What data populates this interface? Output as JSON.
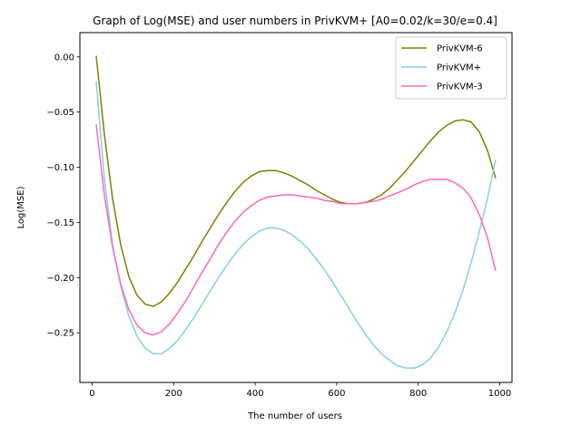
{
  "chart_data": {
    "type": "line",
    "title": "Graph of Log(MSE) and user numbers in PrivKVM+ [A0=0.02/k=30/e=0.4]",
    "xlabel": "The number of users",
    "ylabel": "Log(MSE)",
    "xlim": [
      -30,
      1030
    ],
    "ylim": [
      -0.295,
      0.022
    ],
    "xticks": [
      0,
      200,
      400,
      600,
      800,
      1000
    ],
    "yticks": [
      0.0,
      -0.05,
      -0.1,
      -0.15,
      -0.2,
      -0.25
    ],
    "xtick_labels": [
      "0",
      "200",
      "400",
      "600",
      "800",
      "1000"
    ],
    "ytick_labels": [
      "0.00",
      "−0.05",
      "−0.10",
      "−0.15",
      "−0.20",
      "−0.25"
    ],
    "grid": false,
    "legend_position": "top-right",
    "series": [
      {
        "name": "PrivKVM-6",
        "color": "#808000",
        "x": [
          10,
          30,
          50,
          70,
          90,
          110,
          130,
          150,
          170,
          190,
          210,
          230,
          250,
          270,
          290,
          310,
          330,
          350,
          370,
          390,
          410,
          430,
          450,
          470,
          490,
          510,
          530,
          550,
          570,
          590,
          610,
          630,
          650,
          670,
          690,
          710,
          730,
          750,
          770,
          790,
          810,
          830,
          850,
          870,
          890,
          910,
          930,
          950,
          970,
          990
        ],
        "y": [
          0.001,
          -0.07,
          -0.128,
          -0.17,
          -0.199,
          -0.216,
          -0.224,
          -0.226,
          -0.222,
          -0.214,
          -0.204,
          -0.192,
          -0.18,
          -0.167,
          -0.155,
          -0.143,
          -0.132,
          -0.122,
          -0.114,
          -0.108,
          -0.104,
          -0.103,
          -0.103,
          -0.105,
          -0.108,
          -0.112,
          -0.116,
          -0.121,
          -0.125,
          -0.129,
          -0.132,
          -0.133,
          -0.133,
          -0.132,
          -0.129,
          -0.125,
          -0.119,
          -0.111,
          -0.103,
          -0.094,
          -0.085,
          -0.076,
          -0.068,
          -0.062,
          -0.058,
          -0.057,
          -0.059,
          -0.068,
          -0.085,
          -0.11
        ]
      },
      {
        "name": "PrivKVM+",
        "color": "#87ceeb",
        "x": [
          10,
          30,
          50,
          70,
          90,
          110,
          130,
          150,
          170,
          190,
          210,
          230,
          250,
          270,
          290,
          310,
          330,
          350,
          370,
          390,
          410,
          430,
          450,
          470,
          490,
          510,
          530,
          550,
          570,
          590,
          610,
          630,
          650,
          670,
          690,
          710,
          730,
          750,
          770,
          790,
          810,
          830,
          850,
          870,
          890,
          910,
          930,
          950,
          970,
          990
        ],
        "y": [
          -0.022,
          -0.11,
          -0.17,
          -0.207,
          -0.235,
          -0.253,
          -0.264,
          -0.269,
          -0.269,
          -0.264,
          -0.257,
          -0.247,
          -0.236,
          -0.224,
          -0.212,
          -0.2,
          -0.189,
          -0.179,
          -0.17,
          -0.163,
          -0.158,
          -0.155,
          -0.155,
          -0.157,
          -0.161,
          -0.167,
          -0.174,
          -0.183,
          -0.193,
          -0.204,
          -0.216,
          -0.228,
          -0.24,
          -0.251,
          -0.261,
          -0.269,
          -0.275,
          -0.28,
          -0.282,
          -0.282,
          -0.279,
          -0.273,
          -0.263,
          -0.249,
          -0.232,
          -0.211,
          -0.186,
          -0.158,
          -0.128,
          -0.093
        ]
      },
      {
        "name": "PrivKVM-3",
        "color": "#ff69b4",
        "x": [
          10,
          30,
          50,
          70,
          90,
          110,
          130,
          150,
          170,
          190,
          210,
          230,
          250,
          270,
          290,
          310,
          330,
          350,
          370,
          390,
          410,
          430,
          450,
          470,
          490,
          510,
          530,
          550,
          570,
          590,
          610,
          630,
          650,
          670,
          690,
          710,
          730,
          750,
          770,
          790,
          810,
          830,
          850,
          870,
          890,
          910,
          930,
          950,
          970,
          990
        ],
        "y": [
          -0.061,
          -0.125,
          -0.172,
          -0.206,
          -0.229,
          -0.243,
          -0.25,
          -0.252,
          -0.249,
          -0.242,
          -0.232,
          -0.221,
          -0.208,
          -0.195,
          -0.183,
          -0.17,
          -0.159,
          -0.149,
          -0.141,
          -0.135,
          -0.13,
          -0.127,
          -0.126,
          -0.125,
          -0.125,
          -0.126,
          -0.127,
          -0.128,
          -0.13,
          -0.131,
          -0.133,
          -0.133,
          -0.133,
          -0.132,
          -0.131,
          -0.129,
          -0.126,
          -0.123,
          -0.12,
          -0.116,
          -0.113,
          -0.111,
          -0.111,
          -0.111,
          -0.114,
          -0.119,
          -0.128,
          -0.143,
          -0.164,
          -0.194
        ]
      }
    ]
  }
}
